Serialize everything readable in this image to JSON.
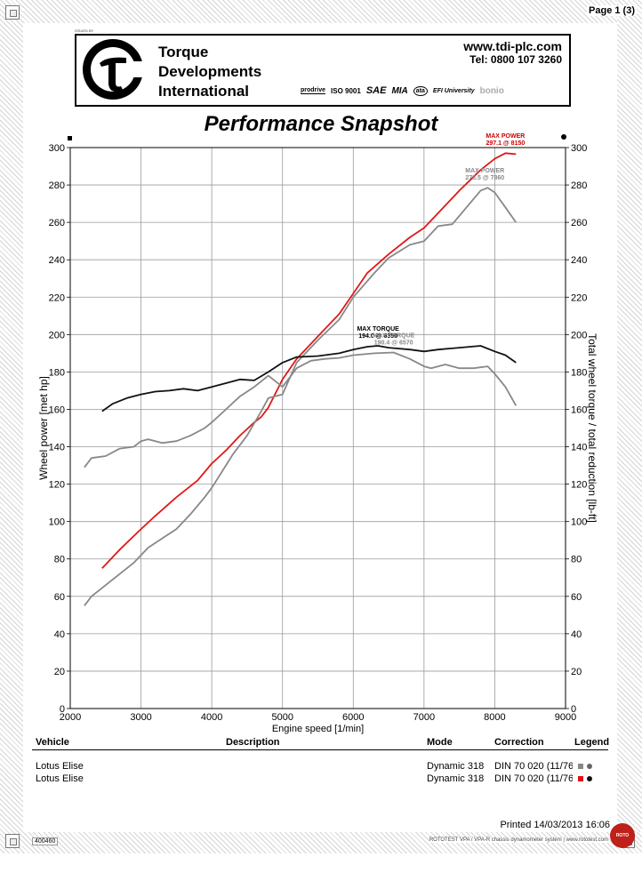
{
  "page_number": "Page 1 (3)",
  "header": {
    "issued_by": "ISSUED BY",
    "company_line1": "Torque",
    "company_line2": "Developments",
    "company_line3": "International",
    "website": "www.tdi-plc.com",
    "phone": "Tel: 0800 107 3260",
    "logos": [
      "prodrive",
      "ISO 9001",
      "SAE",
      "MIA",
      "ata",
      "EFI University",
      "bonio"
    ]
  },
  "chart_title": "Performance Snapshot",
  "chart_data": {
    "type": "line",
    "title": "Performance Snapshot",
    "xlabel": "Engine speed [1/min]",
    "ylabel_left": "Wheel power [met hp]",
    "ylabel_right": "Total wheel torque / total reduction [lb-ft]",
    "xlim": [
      2000,
      9000
    ],
    "ylim": [
      0,
      300
    ],
    "x_ticks": [
      "2000",
      "3000",
      "4000",
      "5000",
      "6000",
      "7000",
      "8000",
      "9000"
    ],
    "y_ticks": [
      "0",
      "20",
      "40",
      "60",
      "80",
      "100",
      "120",
      "140",
      "160",
      "180",
      "200",
      "220",
      "240",
      "260",
      "280",
      "300"
    ],
    "grid": true,
    "series": [
      {
        "role": "power",
        "color": "#e01818",
        "x": [
          2450,
          2700,
          3000,
          3200,
          3500,
          3800,
          4000,
          4200,
          4400,
          4600,
          4700,
          4800,
          5000,
          5200,
          5500,
          5800,
          6000,
          6200,
          6500,
          6800,
          7000,
          7200,
          7500,
          7800,
          8000,
          8150,
          8300
        ],
        "y": [
          75,
          85,
          96,
          103,
          113,
          122,
          131,
          138,
          146,
          153,
          156,
          161,
          176,
          187,
          199,
          211,
          222,
          233,
          243,
          252,
          257,
          265,
          277,
          288,
          294,
          297,
          296.5
        ]
      },
      {
        "role": "power",
        "color": "#888888",
        "x": [
          2200,
          2300,
          2500,
          2700,
          2900,
          3000,
          3100,
          3300,
          3500,
          3700,
          3900,
          4000,
          4100,
          4300,
          4500,
          4700,
          4800,
          5000,
          5200,
          5500,
          5800,
          6000,
          6300,
          6500,
          6800,
          7000,
          7200,
          7400,
          7600,
          7800,
          7900,
          8000,
          8150,
          8300
        ],
        "y": [
          55,
          60,
          66,
          72,
          78,
          82,
          86,
          91,
          96,
          104,
          113,
          118,
          124,
          136,
          146,
          159,
          166,
          168,
          185,
          197,
          208,
          220,
          233,
          241,
          248,
          250,
          258,
          259,
          268,
          277,
          278.5,
          276,
          268,
          260
        ]
      },
      {
        "role": "torque",
        "color": "#111111",
        "x": [
          2450,
          2600,
          2800,
          3000,
          3200,
          3400,
          3600,
          3800,
          4000,
          4200,
          4400,
          4600,
          4800,
          5000,
          5200,
          5500,
          5800,
          6000,
          6200,
          6350,
          6500,
          6800,
          7000,
          7200,
          7500,
          7800,
          8000,
          8150,
          8300
        ],
        "y": [
          159,
          163,
          166,
          168,
          169.5,
          170,
          171,
          170,
          172,
          174,
          176,
          175.5,
          180,
          185,
          188,
          188.5,
          190,
          192,
          193.5,
          194,
          193,
          192,
          191,
          192,
          193,
          194,
          191,
          189,
          185
        ]
      },
      {
        "role": "torque",
        "color": "#888888",
        "x": [
          2200,
          2300,
          2500,
          2700,
          2900,
          3000,
          3100,
          3300,
          3500,
          3700,
          3900,
          4000,
          4200,
          4400,
          4600,
          4800,
          5000,
          5200,
          5400,
          5600,
          5800,
          6000,
          6300,
          6570,
          6800,
          7000,
          7100,
          7300,
          7500,
          7700,
          7900,
          8000,
          8150,
          8300
        ],
        "y": [
          129,
          134,
          135,
          139,
          140,
          143,
          144,
          142,
          143,
          146,
          150,
          153,
          160,
          167,
          172,
          178,
          172,
          182,
          186,
          187,
          187.5,
          189,
          190,
          190.4,
          187,
          183,
          182,
          184,
          182,
          182,
          183,
          179,
          172,
          162
        ]
      }
    ],
    "annotations": [
      {
        "line1": "MAX POWER",
        "line2": "297.1 @ 8150",
        "color": "#cc0000",
        "x": 8150,
        "y": 297.1
      },
      {
        "line1": "MAX POWER",
        "line2": "278.5 @ 7860",
        "color": "#888888",
        "x": 7860,
        "y": 278.5
      },
      {
        "line1": "MAX TORQUE",
        "line2": "194.0 @ 6350",
        "color": "#000000",
        "x": 6350,
        "y": 194.0
      },
      {
        "line1": "MAX TORQUE",
        "line2": "190.4 @ 6570",
        "color": "#888888",
        "x": 6570,
        "y": 190.4
      }
    ]
  },
  "table": {
    "headers": [
      "Vehicle",
      "Description",
      "Mode",
      "Correction",
      "Legend"
    ],
    "rows": [
      {
        "vehicle": "Lotus  Elise",
        "description": "",
        "mode": "Dynamic 318",
        "correction": "DIN 70 020 (11/76",
        "square_color": "#888888",
        "dot_color": "#666666"
      },
      {
        "vehicle": "Lotus  Elise",
        "description": "",
        "mode": "Dynamic 318",
        "correction": "DIN 70 020 (11/76",
        "square_color": "#dd1111",
        "dot_color": "#111111"
      }
    ]
  },
  "footer": {
    "printed": "Printed 14/03/2013 16:06",
    "doc_id": "400460",
    "system_text": "ROTOTEST VPA / VPA-R chassis dynamometer system | www.rototest.com",
    "badge": "ROTO TEST"
  }
}
